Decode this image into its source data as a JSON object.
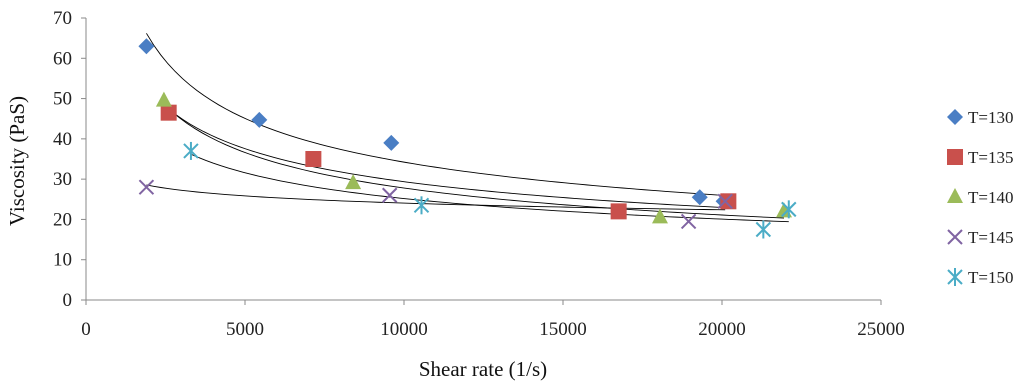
{
  "chart_data": {
    "type": "scatter",
    "title": "",
    "xlabel": "Shear rate (1/s)",
    "ylabel": "Viscosity (PaS)",
    "xlim": [
      0,
      25000
    ],
    "ylim": [
      0,
      70
    ],
    "x_ticks": [
      0,
      5000,
      10000,
      15000,
      20000,
      25000
    ],
    "y_ticks": [
      0,
      10,
      20,
      30,
      40,
      50,
      60,
      70
    ],
    "grid": false,
    "legend_position": "right",
    "trendline": "power",
    "series": [
      {
        "name": "T=130",
        "marker": "diamond",
        "color": "#4a7ec4",
        "points": [
          [
            1900,
            63
          ],
          [
            5450,
            44.7
          ],
          [
            9600,
            39
          ],
          [
            19300,
            25.5
          ],
          [
            20050,
            24.5
          ]
        ]
      },
      {
        "name": "T=135",
        "marker": "square",
        "color": "#c9504c",
        "points": [
          [
            2600,
            46.5
          ],
          [
            7150,
            35
          ],
          [
            16750,
            22
          ],
          [
            20200,
            24.5
          ]
        ]
      },
      {
        "name": "T=140",
        "marker": "triangle",
        "color": "#9bbb59",
        "points": [
          [
            2450,
            49.5
          ],
          [
            8400,
            29
          ],
          [
            18050,
            20.5
          ],
          [
            21950,
            22
          ]
        ]
      },
      {
        "name": "T=145",
        "marker": "x",
        "color": "#8064a2",
        "points": [
          [
            1900,
            28
          ],
          [
            9550,
            26
          ],
          [
            18950,
            19.5
          ],
          [
            20100,
            24.5
          ]
        ]
      },
      {
        "name": "T=150",
        "marker": "star",
        "color": "#4bacc6",
        "points": [
          [
            3300,
            37
          ],
          [
            10550,
            23.5
          ],
          [
            21300,
            17.5
          ],
          [
            22100,
            22.5
          ]
        ]
      }
    ]
  }
}
